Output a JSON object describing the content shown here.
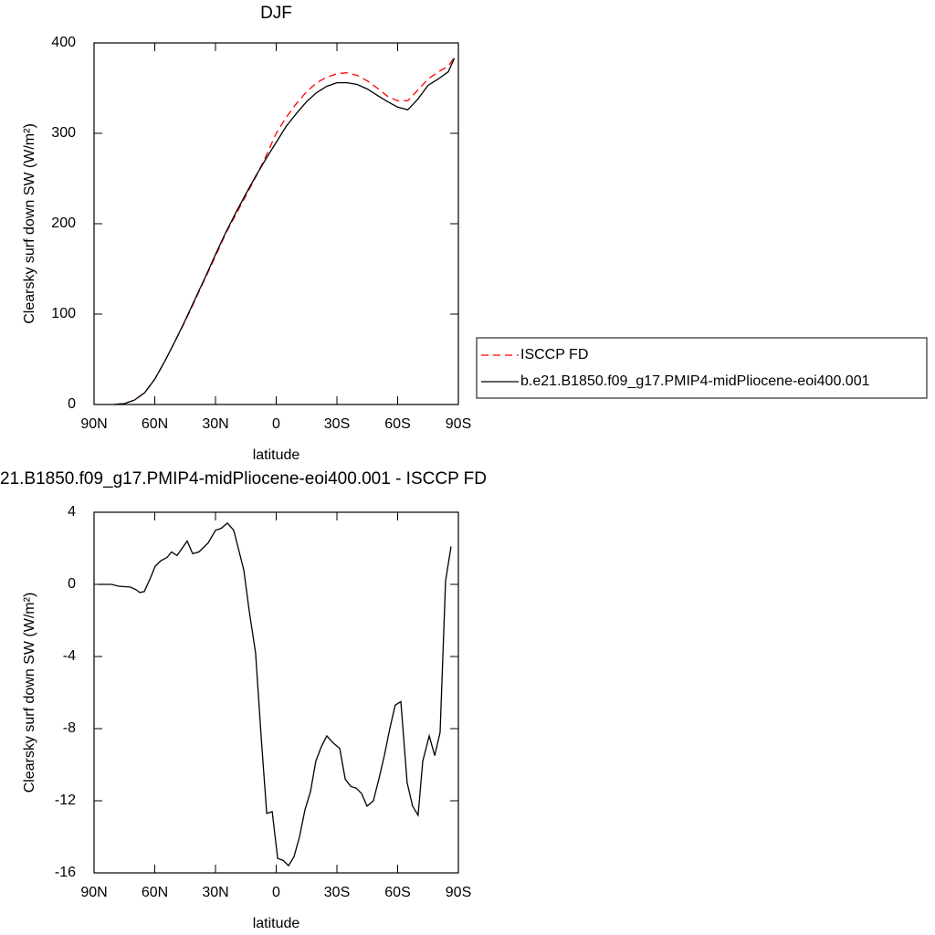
{
  "chart_data": [
    {
      "type": "line",
      "title": "DJF",
      "xlabel": "latitude",
      "ylabel": "Clearsky surf down SW (W/m²)",
      "x": [
        80,
        75,
        70,
        65,
        60,
        55,
        50,
        45,
        40,
        35,
        30,
        25,
        20,
        15,
        10,
        5,
        0,
        -5,
        -10,
        -15,
        -20,
        -25,
        -30,
        -35,
        -40,
        -45,
        -50,
        -55,
        -60,
        -65,
        -70,
        -75,
        -80,
        -85,
        -88
      ],
      "series": [
        {
          "name": "ISCCP FD",
          "color": "#ff0000",
          "dash": "dashed",
          "values": [
            0,
            1,
            5,
            13,
            28,
            48,
            70,
            92,
            116,
            140,
            164,
            189,
            210,
            231,
            252,
            275,
            300,
            318,
            333,
            346,
            356,
            362,
            366,
            367,
            364,
            358,
            350,
            341,
            336,
            336,
            348,
            360,
            368,
            374,
            384
          ]
        },
        {
          "name": "b.e21.B1850.f09_g17.PMIP4-midPliocene-eoi400.001",
          "color": "#000000",
          "values": [
            0,
            1,
            5,
            13,
            28,
            48,
            70,
            93,
            117,
            141,
            166,
            190,
            212,
            233,
            253,
            272,
            290,
            308,
            322,
            335,
            345,
            352,
            356,
            356,
            354,
            349,
            342,
            335,
            329,
            326,
            338,
            353,
            360,
            368,
            383
          ]
        }
      ],
      "xlim": [
        90,
        -90
      ],
      "xticks": [
        {
          "value": 90,
          "label": "90N"
        },
        {
          "value": 60,
          "label": "60N"
        },
        {
          "value": 30,
          "label": "30N"
        },
        0,
        {
          "value": -30,
          "label": "30S"
        },
        {
          "value": -60,
          "label": "60S"
        },
        {
          "value": -90,
          "label": "90S"
        }
      ],
      "ylim": [
        0,
        400
      ],
      "yticks": [
        0,
        100,
        200,
        300,
        400
      ],
      "legend": "outside right"
    },
    {
      "type": "line",
      "title": "21.B1850.f09_g17.PMIP4-midPliocene-eoi400.001 - ISCCP FD",
      "xlabel": "latitude",
      "ylabel": "Clearsky surf down SW (W/m²)",
      "x": [
        87.7,
        81.4,
        77.8,
        72.0,
        69.2,
        67.4,
        65.2,
        62.0,
        59.8,
        57.1,
        53.9,
        51.7,
        49.0,
        44.0,
        41.3,
        38.2,
        33.6,
        30.0,
        27.3,
        24.1,
        21.0,
        16.0,
        13.3,
        10.2,
        7.4,
        4.7,
        2.0,
        -0.7,
        -3.4,
        -6.1,
        -8.8,
        -11.5,
        -14.2,
        -16.9,
        -19.6,
        -22.3,
        -25.0,
        -28.2,
        -31.4,
        -34.1,
        -36.8,
        -39.5,
        -42.2,
        -44.9,
        -48.0,
        -50.7,
        -53.4,
        -56.1,
        -58.8,
        -61.6,
        -64.7,
        -67.4,
        -70.1,
        -72.4,
        -75.6,
        -78.3,
        -81.0,
        -83.7,
        -86.4
      ],
      "series": [
        {
          "color": "#000000",
          "values": [
            0,
            0,
            -0.1,
            -0.15,
            -0.3,
            -0.45,
            -0.4,
            0.4,
            1.0,
            1.3,
            1.5,
            1.8,
            1.6,
            2.4,
            1.7,
            1.8,
            2.3,
            3.0,
            3.1,
            3.4,
            3.0,
            0.8,
            -1.5,
            -3.8,
            -8.5,
            -12.7,
            -12.6,
            -15.2,
            -15.3,
            -15.6,
            -15.1,
            -14,
            -12.5,
            -11.5,
            -9.8,
            -9.0,
            -8.4,
            -8.8,
            -9.1,
            -10.8,
            -11.2,
            -11.3,
            -11.6,
            -12.3,
            -12.0,
            -10.8,
            -9.5,
            -8.0,
            -6.7,
            -6.5,
            -11.0,
            -12.3,
            -12.8,
            -9.8,
            -8.4,
            -9.5,
            -8.2,
            0.2,
            2.1
          ]
        }
      ],
      "xlim": [
        90,
        -90
      ],
      "xticks": [
        {
          "value": 90,
          "label": "90N"
        },
        {
          "value": 60,
          "label": "60N"
        },
        {
          "value": 30,
          "label": "30N"
        },
        0,
        {
          "value": -30,
          "label": "30S"
        },
        {
          "value": -60,
          "label": "60S"
        },
        {
          "value": -90,
          "label": "90S"
        }
      ],
      "ylim": [
        -16,
        4
      ],
      "yticks": [
        -16,
        -12,
        -8,
        -4,
        0,
        4
      ]
    }
  ]
}
